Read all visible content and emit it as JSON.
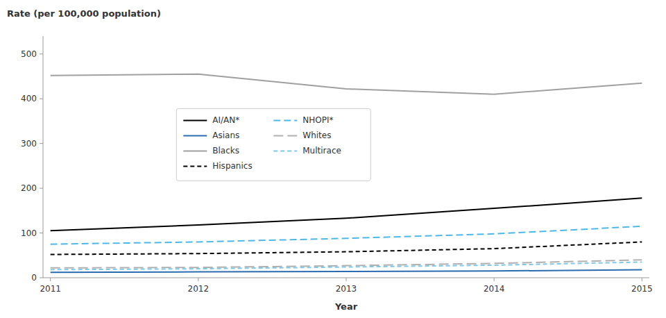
{
  "chart_data": {
    "type": "line",
    "xlabel": "Year",
    "ylabel": "Rate (per 100,000 population)",
    "x": [
      2011,
      2012,
      2013,
      2014,
      2015
    ],
    "series": [
      {
        "name": "AI/AN*",
        "color": "#000000",
        "line_style": "solid",
        "values": [
          105,
          118,
          133,
          155,
          178
        ]
      },
      {
        "name": "Asians",
        "color": "#2b6cb0",
        "line_style": "solid",
        "values": [
          12,
          13,
          14,
          15,
          18
        ]
      },
      {
        "name": "Blacks",
        "color": "#a0a0a0",
        "line_style": "solid",
        "values": [
          452,
          455,
          422,
          410,
          435
        ]
      },
      {
        "name": "Hispanics",
        "color": "#000000",
        "line_style": "dashed",
        "values": [
          52,
          54,
          58,
          65,
          80
        ]
      },
      {
        "name": "NHOPI*",
        "color": "#4db8e8",
        "line_style": "dashed",
        "values": [
          75,
          80,
          88,
          98,
          115
        ]
      },
      {
        "name": "Whites",
        "color": "#b0b0b0",
        "line_style": "dashed",
        "values": [
          22,
          23,
          27,
          32,
          40
        ]
      },
      {
        "name": "Multirace",
        "color": "#7ec8e8",
        "line_style": "dashed",
        "values": [
          18,
          20,
          24,
          28,
          35
        ]
      }
    ],
    "xlim": [
      2010.95,
      2015.05
    ],
    "xticks": [
      2011,
      2012,
      2013,
      2014,
      2015
    ],
    "ylim": [
      0,
      540
    ],
    "yticks": [
      0,
      100,
      200,
      300,
      400,
      500
    ],
    "grid": false,
    "legend": "upper left"
  }
}
